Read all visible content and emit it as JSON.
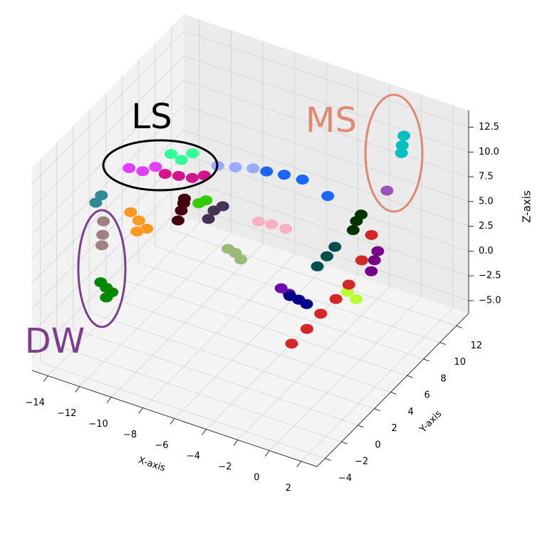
{
  "chart_data": {
    "type": "scatter3d",
    "xlabel": "X-axis",
    "ylabel": "Y-axis",
    "zlabel": "Z-axis",
    "xlim": [
      -15,
      3
    ],
    "ylim": [
      -5,
      13.5
    ],
    "zlim": [
      -6.3,
      14.2
    ],
    "xticks": [
      {
        "value": -14,
        "label": "−14"
      },
      {
        "value": -12,
        "label": "−12"
      },
      {
        "value": -10,
        "label": "−10"
      },
      {
        "value": -8,
        "label": "−8"
      },
      {
        "value": -6,
        "label": "−6"
      },
      {
        "value": -4,
        "label": "−4"
      },
      {
        "value": -2,
        "label": "−2"
      },
      0,
      2
    ],
    "yticks": [
      {
        "value": -4,
        "label": "−4"
      },
      {
        "value": -2,
        "label": "−2"
      },
      0,
      2,
      4,
      6,
      8,
      10,
      12
    ],
    "zticks": [
      {
        "value": -5,
        "label": "−5.0"
      },
      {
        "value": -2.5,
        "label": "−2.5"
      },
      {
        "value": 0,
        "label": "0.0"
      },
      {
        "value": 2.5,
        "label": "2.5"
      },
      {
        "value": 5,
        "label": "5.0"
      },
      {
        "value": 7.5,
        "label": "7.5"
      },
      {
        "value": 10,
        "label": "10.0"
      },
      {
        "value": 12.5,
        "label": "12.5"
      }
    ],
    "grid": true,
    "annotations": [
      {
        "text": "LS",
        "color": "#000000"
      },
      {
        "text": "MS",
        "color": "#e08870"
      },
      {
        "text": "DW",
        "color": "#7b3f8c"
      }
    ],
    "series": [
      {
        "color": "#ff9922",
        "x": [
          -12.2,
          -12.5,
          -11.9,
          -12.0
        ],
        "y": [
          2.6,
          2.2,
          3.0,
          2.0
        ],
        "z": [
          4,
          5,
          3,
          3.5
        ]
      },
      {
        "color": "#338899",
        "x": [
          -14.6,
          -14.4
        ],
        "y": [
          2.0,
          2.3
        ],
        "z": [
          5,
          5.6
        ]
      },
      {
        "color": "#a08080",
        "x": [
          -13.7,
          -13.6,
          -13.8
        ],
        "y": [
          1.1,
          1.0,
          1.2
        ],
        "z": [
          3,
          4.5,
          1.8
        ]
      },
      {
        "color": "#008800",
        "x": [
          -12.9,
          -13.1,
          -12.7,
          -13.0
        ],
        "y": [
          0.0,
          -0.3,
          0.3,
          0.2
        ],
        "z": [
          -1,
          -0.3,
          -1.6,
          -2.2
        ]
      },
      {
        "color": "#e040fb",
        "x": [
          -12.0,
          -11.5,
          -12.6
        ],
        "y": [
          2.7,
          3.3,
          2.2
        ],
        "z": [
          9,
          9.2,
          9.4
        ]
      },
      {
        "color": "#33ff99",
        "x": [
          -10.7,
          -10.2,
          -11.1
        ],
        "y": [
          4.9,
          5.3,
          4.4
        ],
        "z": [
          9,
          9.6,
          9.8
        ]
      },
      {
        "color": "#d4148c",
        "x": [
          -9.8,
          -10.4,
          -9.3,
          -11.0
        ],
        "y": [
          4.5,
          4.0,
          5.0,
          3.5
        ],
        "z": [
          8,
          8.3,
          8.1,
          8.6
        ]
      },
      {
        "color": "#440011",
        "x": [
          -10.65,
          -10.5,
          -10.8,
          -10.6
        ],
        "y": [
          4.8,
          4.9,
          4.7,
          5.0
        ],
        "z": [
          4,
          5.2,
          3.0,
          4.6
        ]
      },
      {
        "color": "#33cc00",
        "x": [
          -9.7,
          -9.4
        ],
        "y": [
          5.1,
          5.4
        ],
        "z": [
          5,
          5.2
        ]
      },
      {
        "color": "#443355",
        "x": [
          -9.1,
          -8.7,
          -9.3
        ],
        "y": [
          5.8,
          6.1,
          5.5
        ],
        "z": [
          4,
          4.4,
          3.3
        ]
      },
      {
        "color": "#99aaff",
        "x": [
          -7.8,
          -8.6,
          -7.0
        ],
        "y": [
          5.9,
          5.3,
          6.5
        ],
        "z": [
          9,
          9.2,
          8.8
        ]
      },
      {
        "color": "#1a66ff",
        "x": [
          -5.6,
          -4.6,
          -3.0,
          -6.4
        ],
        "y": [
          7.6,
          7.9,
          7.9,
          7.0
        ],
        "z": [
          8,
          7.8,
          7,
          8.4
        ]
      },
      {
        "color": "#ffb0c0",
        "x": [
          -6.2,
          -6.8,
          -5.5
        ],
        "y": [
          7.2,
          6.8,
          7.6
        ],
        "z": [
          3,
          3.3,
          2.6
        ]
      },
      {
        "color": "#99bb77",
        "x": [
          -7.5,
          -7.3,
          -7.8
        ],
        "y": [
          5.3,
          5.6,
          5.0
        ],
        "z": [
          1,
          0.2,
          1.5
        ]
      },
      {
        "color": "#005050",
        "x": [
          -3.0,
          -2.6,
          -3.4
        ],
        "y": [
          7.8,
          8.0,
          7.4
        ],
        "z": [
          1,
          2.0,
          0.1
        ]
      },
      {
        "color": "#6a0dad",
        "x": [
          -4.6,
          -4.2
        ],
        "y": [
          5.3,
          5.5
        ],
        "z": [
          -1,
          -1.5
        ]
      },
      {
        "color": "#000088",
        "x": [
          -3.7,
          -3.3,
          -4.1
        ],
        "y": [
          5.7,
          5.9,
          5.4
        ],
        "z": [
          -2,
          -2.4,
          -1.6
        ]
      },
      {
        "color": "#bbff33",
        "x": [
          -1.0,
          -1.3
        ],
        "y": [
          7.5,
          7.0
        ],
        "z": [
          -2,
          -1
        ]
      },
      {
        "color": "#003300",
        "x": [
          -1.4,
          -1.5,
          -1.2
        ],
        "y": [
          8.3,
          8.1,
          8.5
        ],
        "z": [
          5,
          4.2,
          5.6
        ]
      },
      {
        "color": "#770088",
        "x": [
          -0.1,
          -0.2,
          0.0
        ],
        "y": [
          8.0,
          7.8,
          8.2
        ],
        "z": [
          2,
          1.0,
          2.8
        ]
      },
      {
        "color": "#d62728",
        "x": [
          -0.5,
          -0.7,
          -1.1,
          -1.5,
          -2.0,
          -2.4,
          -2.9
        ],
        "y": [
          8.4,
          7.6,
          6.8,
          6.0,
          5.1,
          4.2,
          3.3
        ],
        "z": [
          4,
          2,
          0,
          -1,
          -2,
          -3,
          -4
        ]
      },
      {
        "color": "#00bfbf",
        "x": [
          0.1,
          0.1,
          0.1
        ],
        "y": [
          11.2,
          11.0,
          10.9
        ],
        "z": [
          12,
          11.2,
          10.5
        ]
      },
      {
        "color": "#9955bb",
        "x": [
          -0.45
        ],
        "y": [
          10.2
        ],
        "z": [
          7
        ]
      }
    ]
  }
}
